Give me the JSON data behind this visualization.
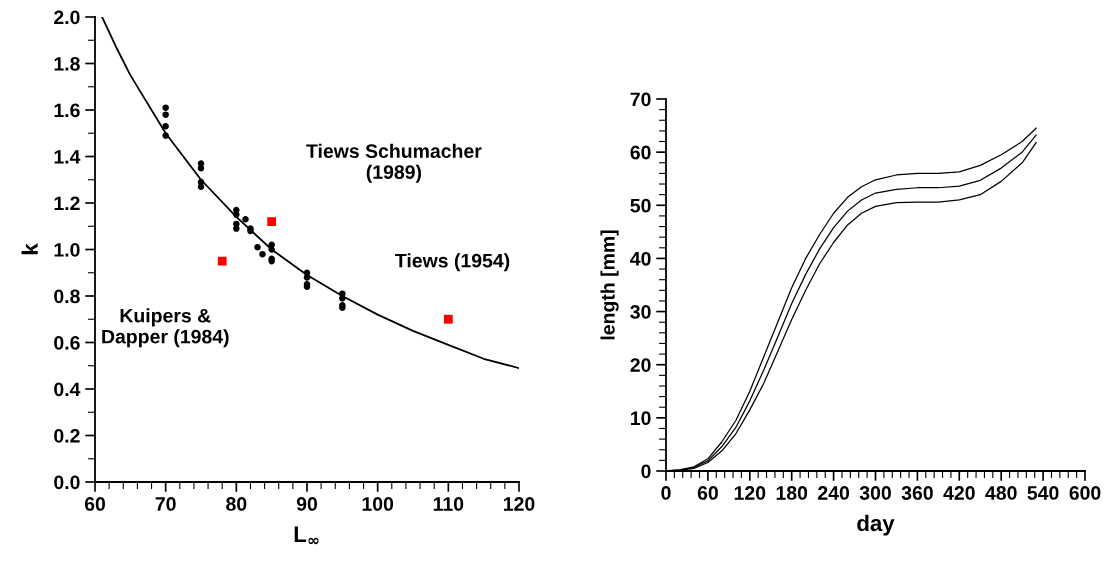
{
  "chart_data": [
    {
      "type": "scatter",
      "xlabel": "L$_{∞}$",
      "ylabel": "k",
      "xlim": [
        60,
        120
      ],
      "ylim": [
        0,
        2.0
      ],
      "xticks": [
        60,
        70,
        80,
        90,
        100,
        110,
        120
      ],
      "yticks": [
        {
          "value": 0,
          "label": "0.0"
        },
        0.2,
        0.4,
        0.6,
        0.8,
        {
          "value": 1,
          "label": "1.0"
        },
        1.2,
        1.4,
        1.6,
        1.8,
        {
          "value": 2,
          "label": "2.0"
        }
      ],
      "grid": false,
      "legend": false,
      "series": [
        {
          "type": "line",
          "color": "#000000",
          "marker": "none",
          "line_style": "solid",
          "x": [
            61,
            63,
            65,
            67,
            70,
            75,
            80,
            85,
            90,
            95,
            100,
            105,
            110,
            115,
            120
          ],
          "values": [
            2.0,
            1.87,
            1.75,
            1.65,
            1.5,
            1.3,
            1.14,
            1.0,
            0.89,
            0.8,
            0.72,
            0.65,
            0.59,
            0.53,
            0.49
          ]
        },
        {
          "type": "scatter",
          "color": "#000000",
          "marker": "circle",
          "x": [
            70,
            70,
            70,
            70,
            75,
            75,
            75,
            75,
            80,
            80,
            80,
            80,
            81.3,
            82,
            82,
            83,
            83.7,
            85,
            85,
            85,
            85,
            90,
            90,
            90,
            90,
            95,
            95,
            95,
            95
          ],
          "values": [
            1.61,
            1.58,
            1.53,
            1.49,
            1.37,
            1.35,
            1.29,
            1.27,
            1.17,
            1.15,
            1.11,
            1.09,
            1.13,
            1.09,
            1.08,
            1.01,
            0.98,
            1.02,
            1.0,
            0.96,
            0.95,
            0.9,
            0.88,
            0.85,
            0.84,
            0.81,
            0.79,
            0.76,
            0.75
          ]
        },
        {
          "type": "scatter",
          "color": "#ff0000",
          "marker": "square",
          "x": [
            78,
            85,
            110
          ],
          "values": [
            0.95,
            1.12,
            0.7
          ]
        }
      ],
      "annotations": [
        {
          "text": "Kuipers &\nDapper (1984)",
          "x": 78,
          "y": 0.95
        },
        {
          "text": "Tiews Schumacher\n(1989)",
          "x": 85,
          "y": 1.12
        },
        {
          "text": "Tiews (1954)",
          "x": 110,
          "y": 0.7
        }
      ]
    },
    {
      "type": "line",
      "xlabel": "day",
      "ylabel": "length [mm]",
      "xlim": [
        0,
        600
      ],
      "ylim": [
        0,
        70
      ],
      "xticks": [
        0,
        60,
        120,
        180,
        240,
        300,
        360,
        420,
        480,
        540,
        600
      ],
      "yticks": [
        0,
        10,
        20,
        30,
        40,
        50,
        60,
        70
      ],
      "grid": false,
      "legend": false,
      "marker": "none",
      "line_style": "solid",
      "x": [
        0,
        20,
        40,
        60,
        80,
        100,
        120,
        140,
        160,
        180,
        200,
        220,
        240,
        260,
        280,
        300,
        330,
        360,
        390,
        420,
        450,
        480,
        510,
        530
      ],
      "series": [
        {
          "color": "#000000",
          "values": [
            0,
            0.2,
            0.8,
            2.3,
            5.5,
            9.5,
            15,
            21.5,
            28,
            34.5,
            40,
            44.5,
            48.5,
            51.5,
            53.5,
            54.8,
            55.7,
            56,
            56,
            56.3,
            57.5,
            59.5,
            62,
            64.5
          ]
        },
        {
          "color": "#000000",
          "values": [
            0,
            0.2,
            0.7,
            1.9,
            4.6,
            8.2,
            13.2,
            19,
            25.2,
            31.5,
            37,
            41.8,
            45.8,
            48.9,
            51,
            52.3,
            53,
            53.3,
            53.3,
            53.6,
            54.7,
            57,
            60,
            63.2
          ]
        },
        {
          "color": "#000000",
          "values": [
            0,
            0.1,
            0.5,
            1.6,
            3.8,
            7,
            11.5,
            16.5,
            22.5,
            28.5,
            34,
            39,
            43,
            46.3,
            48.5,
            49.8,
            50.5,
            50.6,
            50.6,
            51,
            52,
            54.5,
            58,
            61.8
          ]
        }
      ]
    }
  ]
}
